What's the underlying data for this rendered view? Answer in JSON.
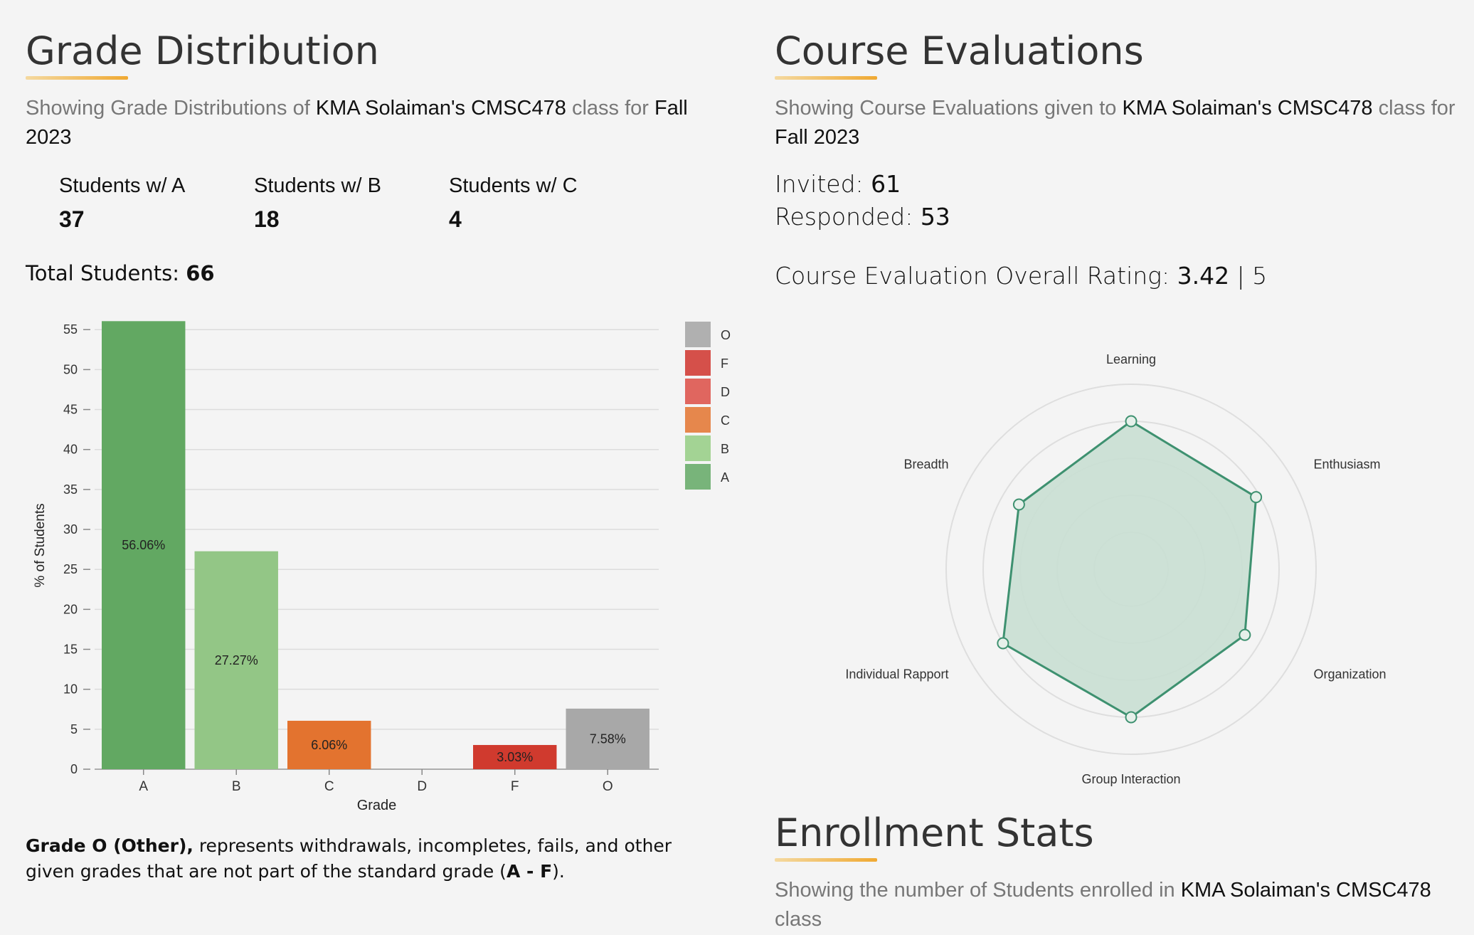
{
  "grade": {
    "title": "Grade Distribution",
    "sub_1": "Showing Grade Distributions of ",
    "sub_instructor": "KMA Solaiman's CMSC478",
    "sub_2": " class for ",
    "sub_term_1": "Fall",
    "sub_term_2": "2023",
    "stats": [
      {
        "label": "Students w/ A",
        "value": "37"
      },
      {
        "label": "Students w/ B",
        "value": "18"
      },
      {
        "label": "Students w/ C",
        "value": "4"
      }
    ],
    "total_label": "Total Students: ",
    "total_value": "66",
    "note_bold": "Grade O (Other),",
    "note_1": " represents withdrawals, incompletes, fails, and other given grades that are not part of the standard grade (",
    "note_bold2": "A - F",
    "note_2": ")."
  },
  "chart_data": [
    {
      "type": "bar",
      "categories": [
        "A",
        "B",
        "C",
        "D",
        "F",
        "O"
      ],
      "values": [
        56.06,
        27.27,
        6.06,
        0,
        3.03,
        7.58
      ],
      "labels": [
        "56.06%",
        "27.27%",
        "6.06%",
        "",
        "3.03%",
        "7.58%"
      ],
      "colors": [
        "#62a862",
        "#93c686",
        "#e3732f",
        "#e0695c",
        "#d03a2e",
        "#a8a8a8"
      ],
      "xlabel": "Grade",
      "ylabel": "% of Students",
      "ylim": [
        0,
        56
      ],
      "yticks": [
        0,
        5,
        10,
        15,
        20,
        25,
        30,
        35,
        40,
        45,
        50,
        55
      ],
      "grid": true,
      "legend": {
        "position": "top-right",
        "items": [
          {
            "name": "O",
            "color": "#b0b0b0"
          },
          {
            "name": "F",
            "color": "#d5504a"
          },
          {
            "name": "D",
            "color": "#e0665f"
          },
          {
            "name": "C",
            "color": "#e6874c"
          },
          {
            "name": "B",
            "color": "#a3d394"
          },
          {
            "name": "A",
            "color": "#78b47a"
          }
        ]
      }
    },
    {
      "type": "radar",
      "axes": [
        "Learning",
        "Enthusiasm",
        "Organization",
        "Group Interaction",
        "Individual Rapport",
        "Breadth"
      ],
      "values": [
        4.0,
        3.9,
        3.55,
        4.0,
        4.0,
        3.5
      ],
      "rmax": 5,
      "color": "#3e9170",
      "fill": "#c9dfd3",
      "grid_rings": 5
    }
  ],
  "evaluations": {
    "title": "Course Evaluations",
    "sub_1": "Showing Course Evaluations given to ",
    "sub_instructor": "KMA Solaiman's CMSC478",
    "sub_2": " class for",
    "sub_term": "Fall 2023",
    "invited_label": "Invited: ",
    "invited_value": "61",
    "responded_label": "Responded: ",
    "responded_value": "53",
    "rating_label": "Course Evaluation Overall Rating: ",
    "rating_value": "3.42",
    "rating_sep": " | 5"
  },
  "enrollment": {
    "title": "Enrollment Stats",
    "sub_1": "Showing the number of Students enrolled in ",
    "sub_instructor": "KMA Solaiman's CMSC478",
    "sub_2": "class"
  }
}
